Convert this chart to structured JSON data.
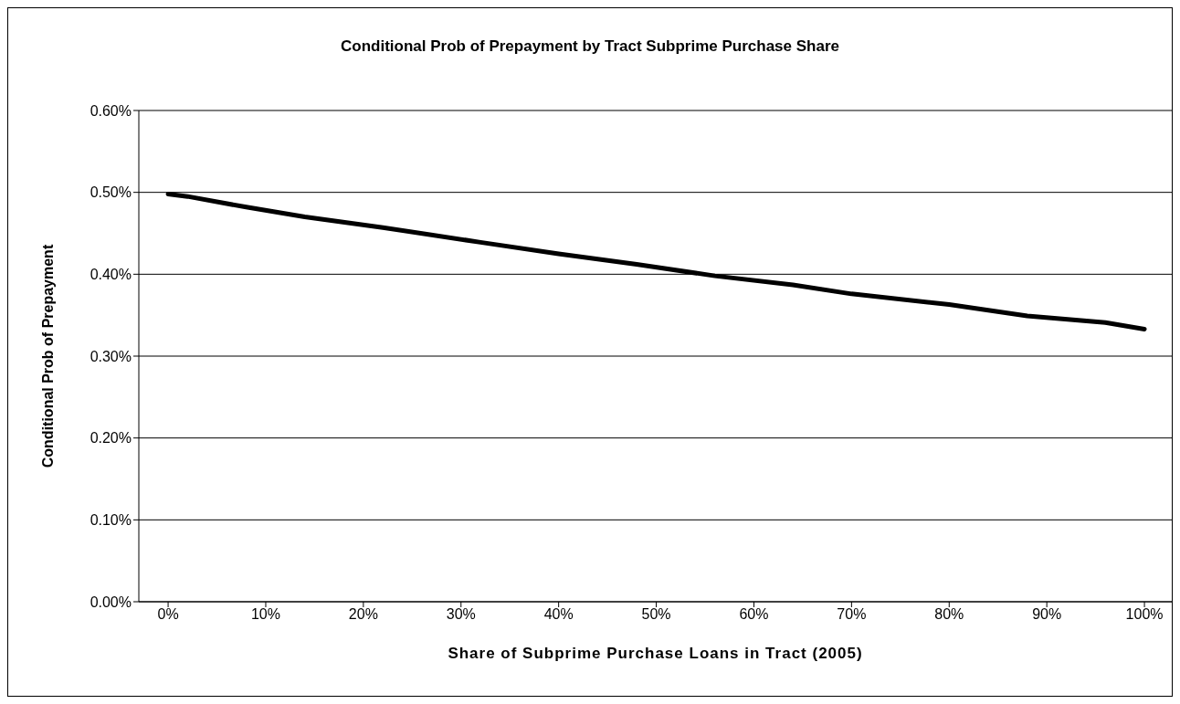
{
  "chart_data": {
    "type": "line",
    "title": "Conditional Prob of Prepayment by Tract Subprime Purchase Share",
    "xlabel": "Share of Subprime Purchase Loans in Tract (2005)",
    "ylabel": "Conditional Prob of Prepayment",
    "x": [
      0,
      2,
      8,
      14,
      22,
      32,
      40,
      48,
      56,
      64,
      70,
      80,
      88,
      96,
      100
    ],
    "series": [
      {
        "color": "#000000",
        "values": [
          0.498,
          0.495,
          0.482,
          0.47,
          0.457,
          0.439,
          0.425,
          0.412,
          0.398,
          0.387,
          0.376,
          0.363,
          0.349,
          0.341,
          0.333
        ]
      }
    ],
    "xlim": [
      -3,
      102.8
    ],
    "xticks": [
      {
        "value": 0,
        "label": "0%"
      },
      {
        "value": 10,
        "label": "10%"
      },
      {
        "value": 20,
        "label": "20%"
      },
      {
        "value": 30,
        "label": "30%"
      },
      {
        "value": 40,
        "label": "40%"
      },
      {
        "value": 50,
        "label": "50%"
      },
      {
        "value": 60,
        "label": "60%"
      },
      {
        "value": 70,
        "label": "70%"
      },
      {
        "value": 80,
        "label": "80%"
      },
      {
        "value": 90,
        "label": "90%"
      },
      {
        "value": 100,
        "label": "100%"
      }
    ],
    "ylim": [
      0,
      0.6
    ],
    "yticks": [
      {
        "value": 0,
        "label": "0.00%"
      },
      {
        "value": 0.1,
        "label": "0.10%"
      },
      {
        "value": 0.2,
        "label": "0.20%"
      },
      {
        "value": 0.3,
        "label": "0.30%"
      },
      {
        "value": 0.4,
        "label": "0.40%"
      },
      {
        "value": 0.5,
        "label": "0.50%"
      },
      {
        "value": 0.6,
        "label": "0.60%"
      }
    ],
    "grid": "y",
    "legend": false,
    "marker": "none",
    "line_style": "solid"
  }
}
